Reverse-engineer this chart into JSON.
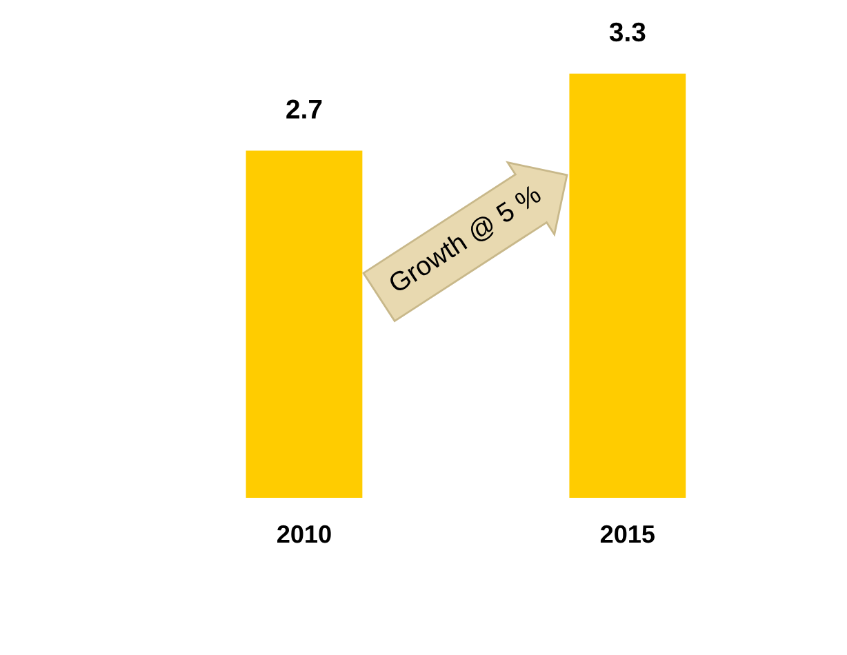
{
  "chart_data": {
    "type": "bar",
    "categories": [
      "2010",
      "2015"
    ],
    "values": [
      2.7,
      3.3
    ],
    "color": "#ffcc00",
    "data_labels": true,
    "annotations": [
      "Growth @ 5 %"
    ]
  }
}
